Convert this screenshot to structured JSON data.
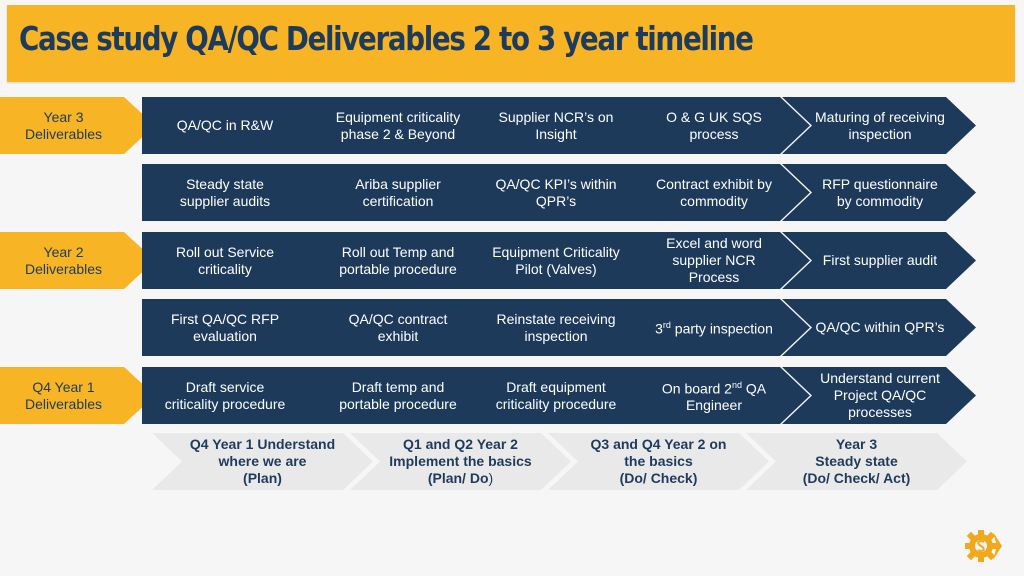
{
  "title": "Case study QA/QC Deliverables 2 to 3 year timeline",
  "row_labels": [
    {
      "text": "Year 3\nDeliverables"
    },
    {
      "text": "Year 2\nDeliverables"
    },
    {
      "text": "Q4 Year 1\nDeliverables"
    }
  ],
  "rows": [
    [
      "QA/QC in R&W",
      "Equipment criticality phase 2 & Beyond",
      "Supplier NCR’s on Insight",
      "O & G UK SQS process",
      "Maturing of receiving inspection"
    ],
    [
      "Steady state supplier audits",
      "Ariba supplier certification",
      "QA/QC KPI’s within QPR’s",
      "Contract exhibit by commodity",
      "RFP questionnaire by commodity"
    ],
    [
      "Roll out Service criticality",
      "Roll out Temp and portable procedure",
      "Equipment Criticality Pilot (Valves)",
      "Excel and word supplier NCR Process",
      "First supplier audit"
    ],
    [
      "First QA/QC RFP evaluation",
      "QA/QC contract exhibit",
      "Reinstate receiving inspection",
      "3rd party inspection",
      "QA/QC within QPR’s"
    ],
    [
      "Draft service criticality procedure",
      "Draft temp and portable procedure",
      "Draft equipment criticality procedure",
      "On board 2nd QA Engineer",
      "Understand current Project QA/QC processes"
    ]
  ],
  "ordinal": {
    "third_num": "3",
    "third_sup": "rd",
    "third_rest": " party inspection",
    "second_pre": "On board 2",
    "second_sup": "nd",
    "second_rest": " QA Engineer"
  },
  "phases": [
    {
      "line1": "Q4 Year 1 Understand",
      "line2": "where we are",
      "line3": "(Plan)"
    },
    {
      "line1": "Q1 and Q2 Year 2",
      "line2": "Implement the basics",
      "line3_bold": "(Plan/ Do",
      "line3_normal": ")"
    },
    {
      "line1": "Q3 and Q4 Year 2 on",
      "line2": "the basics",
      "line3": "(Do/ Check)"
    },
    {
      "line1": "Year 3",
      "line2": "Steady state",
      "line3": "(Do/ Check/ Act)"
    }
  ],
  "colors": {
    "accent": "#f7b526",
    "navy": "#1e3a5a",
    "title_text": "#1f3b5c",
    "phase_bg": "#e9e9e9"
  },
  "logo_icon": "gear-dollar-logo-icon"
}
